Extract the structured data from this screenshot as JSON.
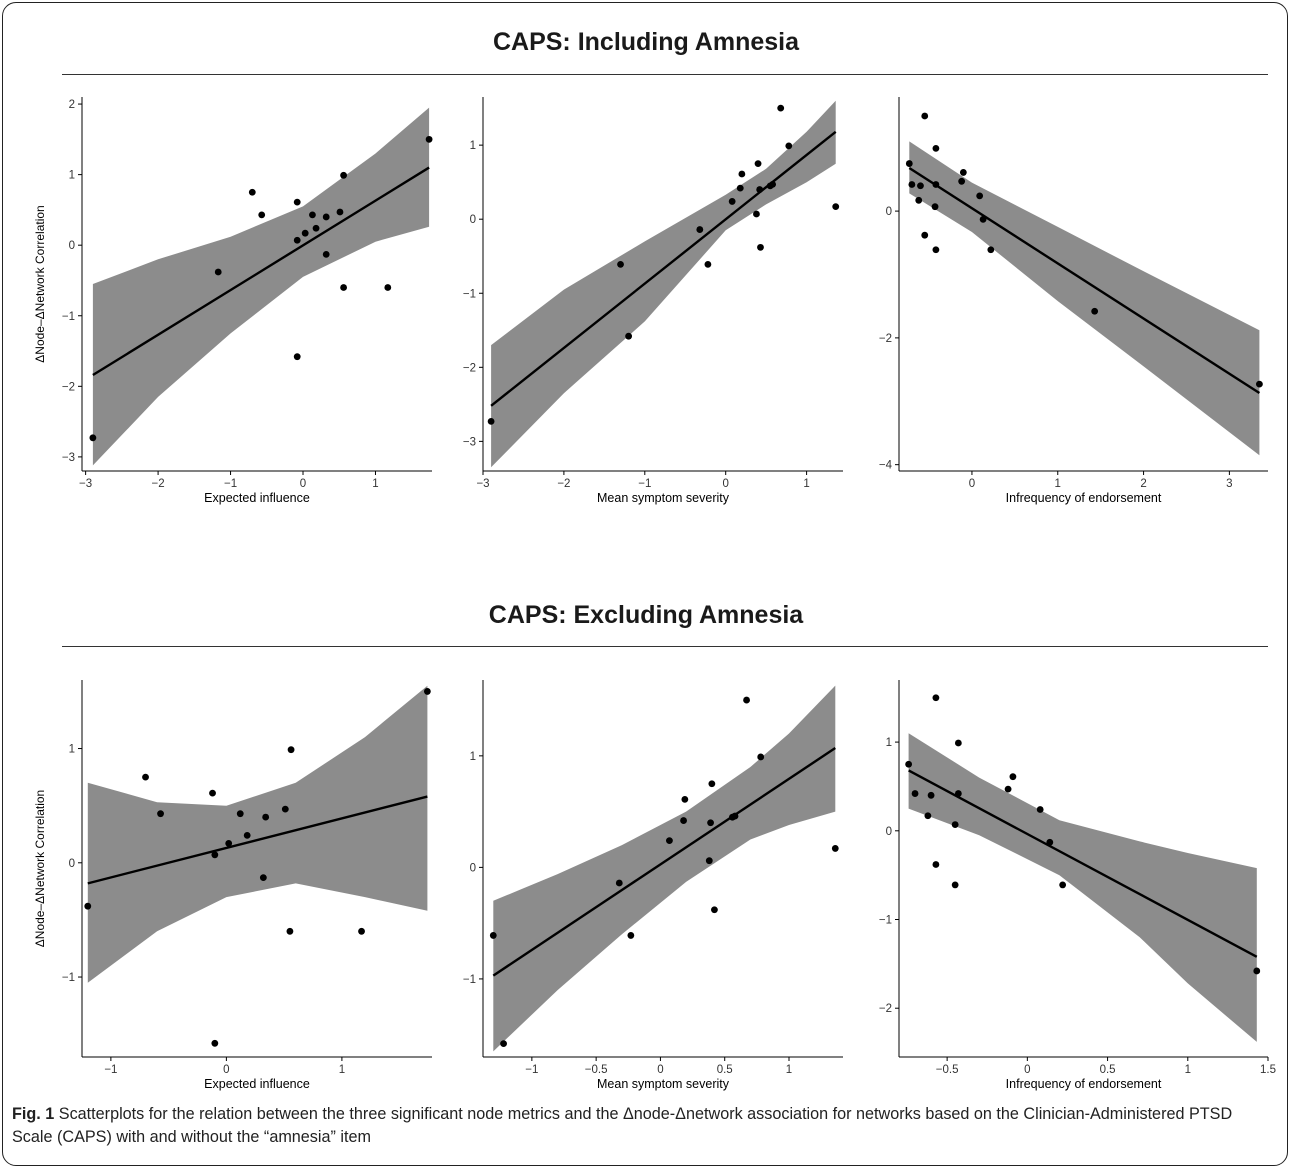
{
  "figure": {
    "caption_label": "Fig. 1",
    "caption_text": "Scatterplots for the relation between the three significant node metrics and the Δnode-Δnetwork association for networks based on the Clinician-Administered PTSD Scale (CAPS) with and without the “amnesia” item"
  },
  "sections": [
    {
      "title": "CAPS: Including Amnesia"
    },
    {
      "title": "CAPS: Excluding Amnesia"
    }
  ],
  "colors": {
    "point": "#000000",
    "fit_line": "#000000",
    "ci_band": "#8c8c8c",
    "axis": "#000000",
    "text": "#000000"
  },
  "chart_data": [
    {
      "type": "scatter",
      "section": "CAPS: Including Amnesia",
      "xlabel": "Expected influence",
      "ylabel": "ΔNode–ΔNetwork Correlation",
      "xlim": [
        -3.05,
        1.78
      ],
      "ylim": [
        -3.2,
        2.1
      ],
      "xticks": [
        -3,
        -2,
        -1,
        0,
        1
      ],
      "yticks": [
        -3,
        -2,
        -1,
        0,
        1,
        2
      ],
      "points": [
        [
          -2.9,
          -2.73
        ],
        [
          -1.17,
          -0.38
        ],
        [
          -0.7,
          0.75
        ],
        [
          -0.57,
          0.43
        ],
        [
          -0.08,
          0.61
        ],
        [
          -0.08,
          0.07
        ],
        [
          -0.08,
          -1.58
        ],
        [
          0.03,
          0.17
        ],
        [
          0.13,
          0.43
        ],
        [
          0.18,
          0.24
        ],
        [
          0.32,
          0.4
        ],
        [
          0.32,
          -0.13
        ],
        [
          0.51,
          0.47
        ],
        [
          0.56,
          0.99
        ],
        [
          0.56,
          -0.6
        ],
        [
          1.17,
          -0.6
        ],
        [
          1.74,
          1.5
        ]
      ],
      "fit": {
        "x0": -2.9,
        "x1": 1.74,
        "y0": -1.84,
        "y1": 1.1
      },
      "ci_band": {
        "x": [
          -2.9,
          -2.0,
          -1.0,
          0.0,
          1.0,
          1.74
        ],
        "upper": [
          -0.55,
          -0.2,
          0.12,
          0.55,
          1.3,
          1.95
        ],
        "lower": [
          -3.12,
          -2.15,
          -1.25,
          -0.45,
          0.05,
          0.26
        ]
      }
    },
    {
      "type": "scatter",
      "section": "CAPS: Including Amnesia",
      "xlabel": "Mean symptom severity",
      "ylabel": "",
      "xlim": [
        -3.0,
        1.45
      ],
      "ylim": [
        -3.4,
        1.65
      ],
      "xticks": [
        -3,
        -2,
        -1,
        0,
        1
      ],
      "yticks": [
        -3,
        -2,
        -1,
        0,
        1
      ],
      "points": [
        [
          -2.9,
          -2.73
        ],
        [
          -1.3,
          -0.61
        ],
        [
          -1.2,
          -1.58
        ],
        [
          -0.32,
          -0.14
        ],
        [
          -0.22,
          -0.61
        ],
        [
          0.08,
          0.24
        ],
        [
          0.18,
          0.42
        ],
        [
          0.2,
          0.61
        ],
        [
          0.38,
          0.07
        ],
        [
          0.4,
          0.75
        ],
        [
          0.42,
          0.4
        ],
        [
          0.43,
          -0.38
        ],
        [
          0.55,
          0.45
        ],
        [
          0.58,
          0.47
        ],
        [
          0.68,
          1.5
        ],
        [
          0.78,
          0.99
        ],
        [
          1.36,
          0.17
        ]
      ],
      "fit": {
        "x0": -2.9,
        "x1": 1.36,
        "y0": -2.52,
        "y1": 1.18
      },
      "ci_band": {
        "x": [
          -2.9,
          -2.0,
          -1.0,
          0.0,
          0.5,
          1.0,
          1.36
        ],
        "upper": [
          -1.7,
          -0.95,
          -0.3,
          0.33,
          0.68,
          1.18,
          1.6
        ],
        "lower": [
          -3.35,
          -2.35,
          -1.38,
          -0.15,
          0.2,
          0.5,
          0.75
        ]
      }
    },
    {
      "type": "scatter",
      "section": "CAPS: Including Amnesia",
      "xlabel": "Infrequency of endorsement",
      "ylabel": "",
      "xlim": [
        -0.85,
        3.45
      ],
      "ylim": [
        -4.1,
        1.8
      ],
      "xticks": [
        0,
        1,
        2,
        3
      ],
      "yticks": [
        -4,
        -2,
        0
      ],
      "points": [
        [
          -0.73,
          0.75
        ],
        [
          -0.7,
          0.42
        ],
        [
          -0.62,
          0.17
        ],
        [
          -0.6,
          0.4
        ],
        [
          -0.55,
          1.5
        ],
        [
          -0.55,
          -0.38
        ],
        [
          -0.43,
          0.07
        ],
        [
          -0.42,
          0.99
        ],
        [
          -0.42,
          -0.61
        ],
        [
          -0.42,
          0.42
        ],
        [
          -0.12,
          0.47
        ],
        [
          -0.1,
          0.61
        ],
        [
          0.09,
          0.24
        ],
        [
          0.13,
          -0.13
        ],
        [
          0.22,
          -0.61
        ],
        [
          1.43,
          -1.58
        ],
        [
          3.35,
          -2.73
        ]
      ],
      "fit": {
        "x0": -0.73,
        "x1": 3.35,
        "y0": 0.68,
        "y1": -2.87
      },
      "ci_band": {
        "x": [
          -0.73,
          0.0,
          1.0,
          2.0,
          3.35
        ],
        "upper": [
          1.1,
          0.45,
          -0.25,
          -0.95,
          -1.88
        ],
        "lower": [
          0.28,
          -0.33,
          -1.42,
          -2.45,
          -3.85
        ]
      }
    },
    {
      "type": "scatter",
      "section": "CAPS: Excluding Amnesia",
      "xlabel": "Expected influence",
      "ylabel": "ΔNode–ΔNetwork Correlation",
      "xlim": [
        -1.25,
        1.78
      ],
      "ylim": [
        -1.7,
        1.6
      ],
      "xticks": [
        -1,
        0,
        1
      ],
      "yticks": [
        -1,
        0,
        1
      ],
      "points": [
        [
          -1.2,
          -0.38
        ],
        [
          -0.7,
          0.75
        ],
        [
          -0.57,
          0.43
        ],
        [
          -0.12,
          0.61
        ],
        [
          -0.1,
          0.07
        ],
        [
          -0.1,
          -1.58
        ],
        [
          0.02,
          0.17
        ],
        [
          0.12,
          0.43
        ],
        [
          0.18,
          0.24
        ],
        [
          0.32,
          -0.13
        ],
        [
          0.34,
          0.4
        ],
        [
          0.51,
          0.47
        ],
        [
          0.55,
          -0.6
        ],
        [
          0.56,
          0.99
        ],
        [
          1.17,
          -0.6
        ],
        [
          1.74,
          1.5
        ]
      ],
      "fit": {
        "x0": -1.2,
        "x1": 1.74,
        "y0": -0.18,
        "y1": 0.58
      },
      "ci_band": {
        "x": [
          -1.2,
          -0.6,
          0.0,
          0.6,
          1.2,
          1.74
        ],
        "upper": [
          0.7,
          0.53,
          0.5,
          0.7,
          1.1,
          1.55
        ],
        "lower": [
          -1.05,
          -0.6,
          -0.3,
          -0.18,
          -0.3,
          -0.42
        ]
      }
    },
    {
      "type": "scatter",
      "section": "CAPS: Excluding Amnesia",
      "xlabel": "Mean symptom severity",
      "ylabel": "",
      "xlim": [
        -1.38,
        1.42
      ],
      "ylim": [
        -1.7,
        1.68
      ],
      "xticks": [
        -1.0,
        -0.5,
        0.0,
        0.5,
        1.0
      ],
      "yticks": [
        -1,
        0,
        1
      ],
      "points": [
        [
          -1.3,
          -0.61
        ],
        [
          -1.22,
          -1.58
        ],
        [
          -0.32,
          -0.14
        ],
        [
          -0.23,
          -0.61
        ],
        [
          0.07,
          0.24
        ],
        [
          0.18,
          0.42
        ],
        [
          0.19,
          0.61
        ],
        [
          0.38,
          0.06
        ],
        [
          0.39,
          0.4
        ],
        [
          0.4,
          0.75
        ],
        [
          0.42,
          -0.38
        ],
        [
          0.56,
          0.45
        ],
        [
          0.58,
          0.46
        ],
        [
          0.67,
          1.5
        ],
        [
          0.78,
          0.99
        ],
        [
          1.36,
          0.17
        ]
      ],
      "fit": {
        "x0": -1.3,
        "x1": 1.36,
        "y0": -0.97,
        "y1": 1.07
      },
      "ci_band": {
        "x": [
          -1.3,
          -0.8,
          -0.3,
          0.2,
          0.7,
          1.0,
          1.36
        ],
        "upper": [
          -0.3,
          -0.06,
          0.2,
          0.5,
          0.9,
          1.2,
          1.63
        ],
        "lower": [
          -1.65,
          -1.1,
          -0.6,
          -0.13,
          0.25,
          0.38,
          0.5
        ]
      }
    },
    {
      "type": "scatter",
      "section": "CAPS: Excluding Amnesia",
      "xlabel": "Infrequency of endorsement",
      "ylabel": "",
      "xlim": [
        -0.8,
        1.5
      ],
      "ylim": [
        -2.55,
        1.7
      ],
      "xticks": [
        -0.5,
        0.0,
        0.5,
        1.0,
        1.5
      ],
      "yticks": [
        -2,
        -1,
        0,
        1
      ],
      "points": [
        [
          -0.74,
          0.75
        ],
        [
          -0.7,
          0.42
        ],
        [
          -0.62,
          0.17
        ],
        [
          -0.6,
          0.4
        ],
        [
          -0.57,
          1.5
        ],
        [
          -0.57,
          -0.38
        ],
        [
          -0.45,
          -0.61
        ],
        [
          -0.45,
          0.07
        ],
        [
          -0.43,
          0.99
        ],
        [
          -0.43,
          0.42
        ],
        [
          -0.12,
          0.47
        ],
        [
          -0.09,
          0.61
        ],
        [
          0.08,
          0.24
        ],
        [
          0.14,
          -0.13
        ],
        [
          0.22,
          -0.61
        ],
        [
          1.43,
          -1.58
        ]
      ],
      "fit": {
        "x0": -0.74,
        "x1": 1.43,
        "y0": 0.68,
        "y1": -1.42
      },
      "ci_band": {
        "x": [
          -0.74,
          -0.3,
          0.2,
          0.7,
          1.0,
          1.43
        ],
        "upper": [
          1.1,
          0.6,
          0.12,
          -0.12,
          -0.25,
          -0.42
        ],
        "lower": [
          0.25,
          -0.05,
          -0.5,
          -1.2,
          -1.72,
          -2.38
        ]
      }
    }
  ]
}
